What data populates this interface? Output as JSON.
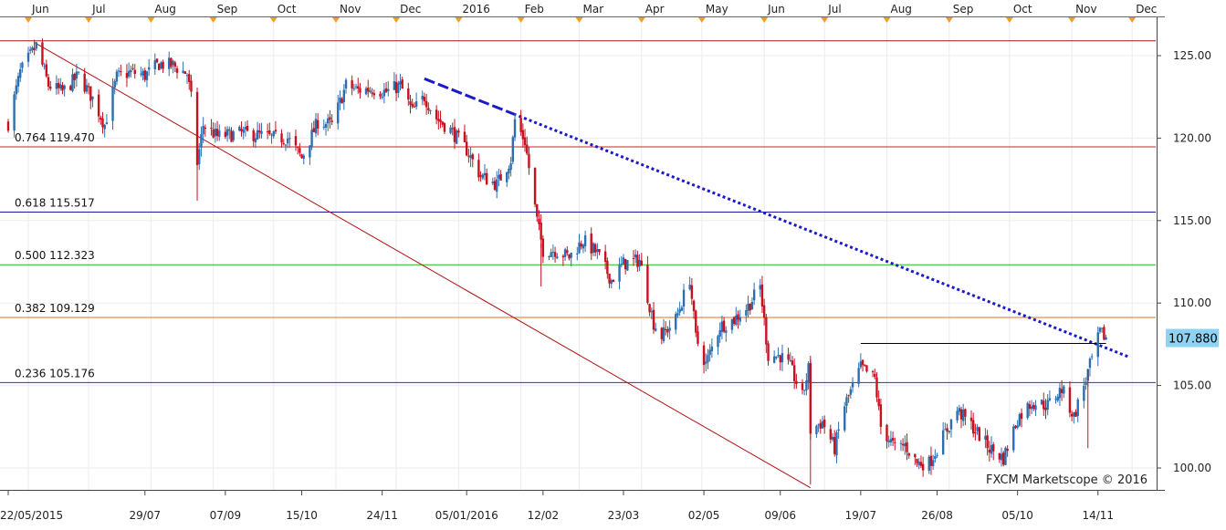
{
  "chart_data": {
    "type": "candlestick",
    "instrument_price_label": "107.880",
    "watermark": "FXCM Marketscope © 2016",
    "y_axis": {
      "min": 98.5,
      "max": 127.0,
      "ticks": [
        "100.00",
        "105.00",
        "110.00",
        "115.00",
        "120.00",
        "125.00"
      ]
    },
    "top_month_labels": [
      "Jun",
      "Jul",
      "Aug",
      "Sep",
      "Oct",
      "Nov",
      "Dec",
      "2016",
      "Feb",
      "Mar",
      "Apr",
      "May",
      "Jun",
      "Jul",
      "Aug",
      "Sep",
      "Oct",
      "Nov",
      "Dec"
    ],
    "bottom_date_labels": [
      "22/05/2015",
      "29/07",
      "07/09",
      "15/10",
      "24/11",
      "05/01/2016",
      "12/02",
      "23/03",
      "02/05",
      "09/06",
      "19/07",
      "26/08",
      "05/10",
      "14/11"
    ],
    "fibonacci_levels": [
      {
        "ratio": "0.764",
        "price": "119.470",
        "value": 119.47,
        "color": "#cc2222"
      },
      {
        "ratio": "0.618",
        "price": "115.517",
        "value": 115.517,
        "color": "#1a1aa0"
      },
      {
        "ratio": "0.500",
        "price": "112.323",
        "value": 112.323,
        "color": "#22bb22"
      },
      {
        "ratio": "0.382",
        "price": "109.129",
        "value": 109.129,
        "color": "#e07020"
      },
      {
        "ratio": "0.236",
        "price": "105.176",
        "value": 105.176,
        "color": "#3333aa"
      }
    ],
    "top_level": {
      "value": 125.9,
      "color": "#b01010"
    },
    "fib_swing": {
      "from": {
        "date": "2015-06-04",
        "value": 125.8
      },
      "to": {
        "date": "2016-06-24",
        "value": 98.8
      },
      "color": "#b01010"
    },
    "downtrend_line": {
      "from": {
        "date": "2015-12-15",
        "value": 123.6
      },
      "to": {
        "date": "2016-11-30",
        "value": 106.7
      },
      "color": "#1a1acc"
    },
    "resistance_line": {
      "from": {
        "date": "2016-07-19",
        "value": 107.55
      },
      "to": {
        "date": "2016-11-18",
        "value": 107.55
      },
      "color": "#000000"
    },
    "price_anchors": [
      [
        "2015-05-22",
        120.9
      ],
      [
        "2015-05-28",
        124.0
      ],
      [
        "2015-06-05",
        125.6
      ],
      [
        "2015-06-11",
        123.2
      ],
      [
        "2015-06-18",
        122.8
      ],
      [
        "2015-06-26",
        123.8
      ],
      [
        "2015-07-03",
        122.4
      ],
      [
        "2015-07-09",
        120.8
      ],
      [
        "2015-07-15",
        123.7
      ],
      [
        "2015-07-22",
        124.0
      ],
      [
        "2015-07-29",
        123.8
      ],
      [
        "2015-08-05",
        124.5
      ],
      [
        "2015-08-12",
        124.4
      ],
      [
        "2015-08-19",
        123.9
      ],
      [
        "2015-08-21",
        122.4
      ],
      [
        "2015-08-24",
        118.5
      ],
      [
        "2015-08-27",
        120.8
      ],
      [
        "2015-09-03",
        120.1
      ],
      [
        "2015-09-09",
        120.2
      ],
      [
        "2015-09-15",
        120.3
      ],
      [
        "2015-09-23",
        120.2
      ],
      [
        "2015-10-01",
        120.0
      ],
      [
        "2015-10-08",
        120.0
      ],
      [
        "2015-10-15",
        118.8
      ],
      [
        "2015-10-23",
        121.0
      ],
      [
        "2015-10-30",
        120.8
      ],
      [
        "2015-11-06",
        123.2
      ],
      [
        "2015-11-12",
        122.9
      ],
      [
        "2015-11-19",
        123.0
      ],
      [
        "2015-11-26",
        122.8
      ],
      [
        "2015-12-03",
        123.2
      ],
      [
        "2015-12-09",
        121.6
      ],
      [
        "2015-12-15",
        122.5
      ],
      [
        "2015-12-21",
        121.2
      ],
      [
        "2015-12-28",
        120.5
      ],
      [
        "2016-01-05",
        119.3
      ],
      [
        "2016-01-12",
        117.7
      ],
      [
        "2016-01-20",
        117.2
      ],
      [
        "2016-01-27",
        118.7
      ],
      [
        "2016-01-29",
        121.1
      ],
      [
        "2016-02-03",
        119.8
      ],
      [
        "2016-02-09",
        115.0
      ],
      [
        "2016-02-12",
        113.2
      ],
      [
        "2016-02-18",
        113.2
      ],
      [
        "2016-02-25",
        112.8
      ],
      [
        "2016-03-03",
        113.8
      ],
      [
        "2016-03-10",
        113.0
      ],
      [
        "2016-03-17",
        111.4
      ],
      [
        "2016-03-23",
        112.4
      ],
      [
        "2016-03-31",
        112.6
      ],
      [
        "2016-04-07",
        108.8
      ],
      [
        "2016-04-11",
        108.0
      ],
      [
        "2016-04-18",
        109.0
      ],
      [
        "2016-04-25",
        111.5
      ],
      [
        "2016-04-28",
        107.9
      ],
      [
        "2016-05-03",
        106.3
      ],
      [
        "2016-05-10",
        108.6
      ],
      [
        "2016-05-17",
        109.0
      ],
      [
        "2016-05-24",
        109.8
      ],
      [
        "2016-05-30",
        111.0
      ],
      [
        "2016-06-03",
        106.8
      ],
      [
        "2016-06-09",
        106.8
      ],
      [
        "2016-06-14",
        106.1
      ],
      [
        "2016-06-20",
        104.3
      ],
      [
        "2016-06-23",
        106.0
      ],
      [
        "2016-06-24",
        102.3
      ],
      [
        "2016-06-30",
        102.8
      ],
      [
        "2016-07-06",
        101.2
      ],
      [
        "2016-07-11",
        103.8
      ],
      [
        "2016-07-15",
        104.9
      ],
      [
        "2016-07-19",
        106.1
      ],
      [
        "2016-07-26",
        105.4
      ],
      [
        "2016-07-29",
        102.5
      ],
      [
        "2016-08-05",
        101.2
      ],
      [
        "2016-08-10",
        101.4
      ],
      [
        "2016-08-16",
        100.3
      ],
      [
        "2016-08-22",
        100.3
      ],
      [
        "2016-08-29",
        101.9
      ],
      [
        "2016-09-05",
        103.5
      ],
      [
        "2016-09-12",
        102.6
      ],
      [
        "2016-09-21",
        101.2
      ],
      [
        "2016-09-28",
        100.6
      ],
      [
        "2016-10-05",
        103.0
      ],
      [
        "2016-10-12",
        104.0
      ],
      [
        "2016-10-20",
        103.8
      ],
      [
        "2016-10-27",
        104.8
      ],
      [
        "2016-11-02",
        103.1
      ],
      [
        "2016-11-09",
        105.8
      ],
      [
        "2016-11-15",
        108.2
      ],
      [
        "2016-11-18",
        107.9
      ]
    ]
  }
}
